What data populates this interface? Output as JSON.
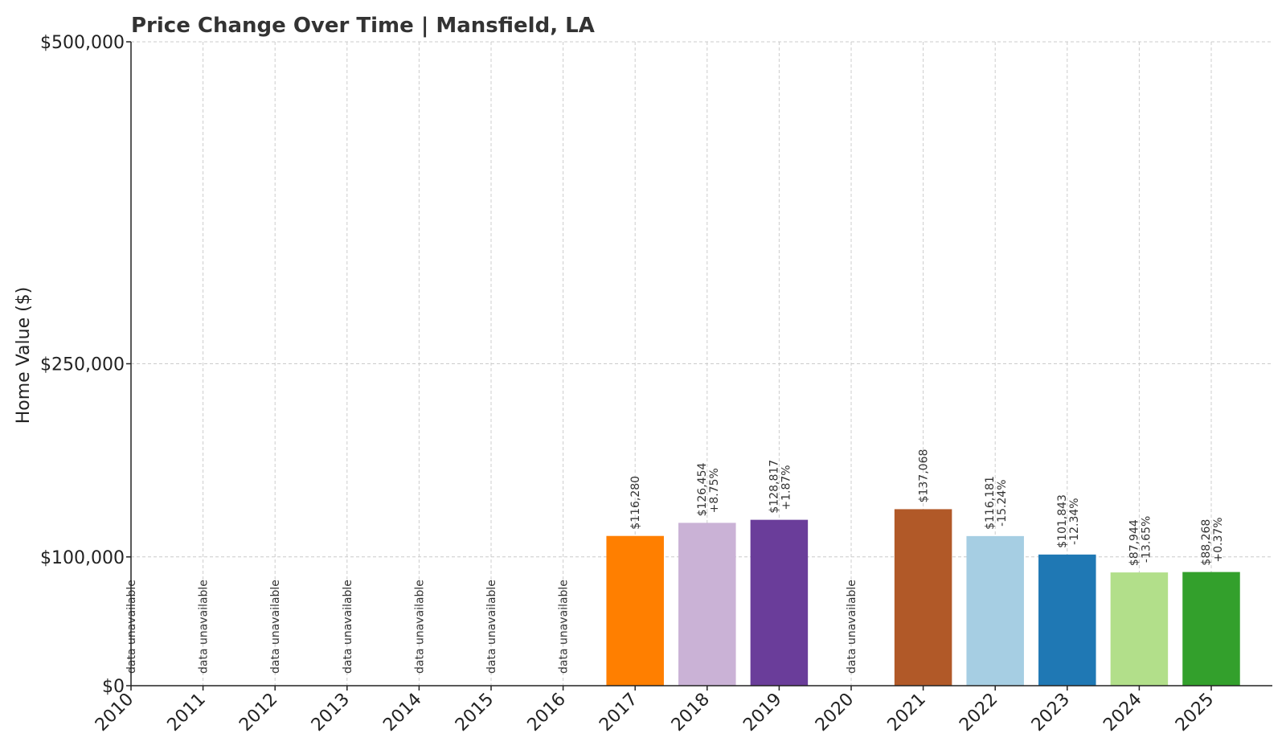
{
  "chart_data": {
    "type": "bar",
    "title": "Price Change Over Time | Mansfield, LA",
    "xlabel": "",
    "ylabel": "Home Value ($)",
    "ylim": [
      0,
      500000
    ],
    "yticks": [
      {
        "value": 0,
        "label": "$0"
      },
      {
        "value": 100000,
        "label": "$100,000"
      },
      {
        "value": 250000,
        "label": "$250,000"
      },
      {
        "value": 500000,
        "label": "$500,000"
      }
    ],
    "grid": true,
    "unavailable_text": "data unavailable",
    "categories": [
      "2010",
      "2011",
      "2012",
      "2013",
      "2014",
      "2015",
      "2016",
      "2017",
      "2018",
      "2019",
      "2020",
      "2021",
      "2022",
      "2023",
      "2024",
      "2025"
    ],
    "values": [
      null,
      null,
      null,
      null,
      null,
      null,
      null,
      116280,
      126454,
      128817,
      null,
      137068,
      116181,
      101843,
      87944,
      88268
    ],
    "value_labels": [
      "",
      "",
      "",
      "",
      "",
      "",
      "",
      "$116,280",
      "$126,454",
      "$128,817",
      "",
      "$137,068",
      "$116,181",
      "$101,843",
      "$87,944",
      "$88,268"
    ],
    "change_labels": [
      "",
      "",
      "",
      "",
      "",
      "",
      "",
      "",
      "+8.75%",
      "+1.87%",
      "",
      "",
      "-15.24%",
      "-12.34%",
      "-13.65%",
      "+0.37%"
    ],
    "colors": [
      "",
      "",
      "",
      "",
      "",
      "",
      "",
      "#ff7f00",
      "#cab2d6",
      "#6a3d9a",
      "",
      "#b15928",
      "#a6cee3",
      "#1f78b4",
      "#b2df8a",
      "#33a02c"
    ]
  }
}
